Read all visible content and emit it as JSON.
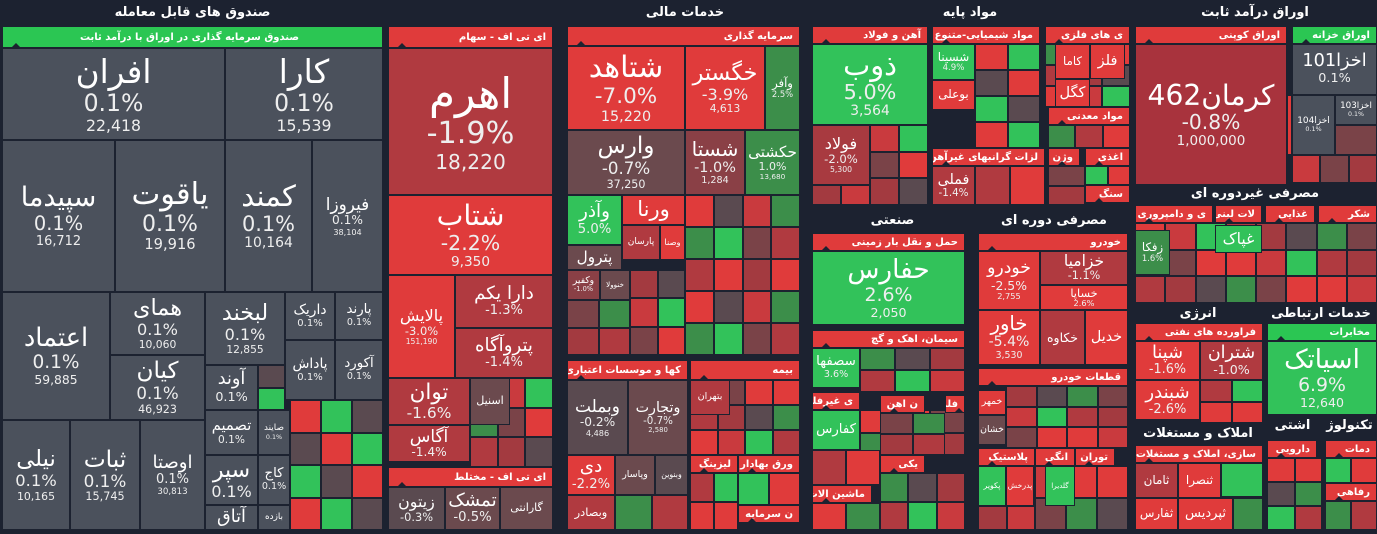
{
  "sectors": [
    {
      "title": "صندوق های قابل معامله"
    },
    {
      "title": "خدمات مالی"
    },
    {
      "title": "مواد پایه"
    },
    {
      "title": "اوراق درآمد ثابت"
    },
    {
      "title": "صنعتی"
    },
    {
      "title": "مصرفی دوره ای"
    },
    {
      "title": "مصرفی غیردوره ای"
    },
    {
      "title": "انرژی"
    },
    {
      "title": "خدمات ارتباطی"
    },
    {
      "title": "املاک و مستغلات"
    },
    {
      "title": "اشتی"
    },
    {
      "title": "تکنولوژ"
    }
  ],
  "groups": [
    {
      "title": "صندوق سرمایه گذاری در اوراق با درآمد ثابت",
      "color": "#2bc653"
    },
    {
      "title": "ای تی اف - سهام",
      "color": "#e03b3b"
    },
    {
      "title": "ای تی اف - مختلط",
      "color": "#e03b3b"
    },
    {
      "title": "سرمایه گذاری",
      "color": "#e03b3b"
    },
    {
      "title": "کها و موسسات اعتباری",
      "color": "#e03b3b"
    },
    {
      "title": "بیمه",
      "color": "#e03b3b"
    },
    {
      "title": "لیزینگ",
      "color": "#e03b3b"
    },
    {
      "title": "ورق بهادار",
      "color": "#e03b3b"
    },
    {
      "title": "ن سرمایه",
      "color": "#e03b3b"
    },
    {
      "title": "آهن و فولاد",
      "color": "#e03b3b"
    },
    {
      "title": "مواد شیمیایی-متنوع",
      "color": "#e03b3b"
    },
    {
      "title": "ی های فلزی",
      "color": "#e03b3b"
    },
    {
      "title": "مواد معدنی",
      "color": "#e03b3b"
    },
    {
      "title": "لزات گرانبهای غیرآهن",
      "color": "#e03b3b"
    },
    {
      "title": "وژن",
      "color": "#e03b3b"
    },
    {
      "title": "اغذی",
      "color": "#e03b3b"
    },
    {
      "title": "سنگ",
      "color": "#e03b3b"
    },
    {
      "title": "حمل و نقل بار زمینی",
      "color": "#e03b3b"
    },
    {
      "title": "سیمان، اهک و گچ",
      "color": "#e03b3b"
    },
    {
      "title": "ی غیرفلزی",
      "color": "#e03b3b"
    },
    {
      "title": "ن اهن",
      "color": "#e03b3b"
    },
    {
      "title": "فلزی",
      "color": "#e03b3b"
    },
    {
      "title": "یکی",
      "color": "#e03b3b"
    },
    {
      "title": "ماشین الات",
      "color": "#e03b3b"
    },
    {
      "title": "خودرو",
      "color": "#e03b3b"
    },
    {
      "title": "قطعات خودرو",
      "color": "#e03b3b"
    },
    {
      "title": "پلاستیک",
      "color": "#e03b3b"
    },
    {
      "title": "انگی",
      "color": "#e03b3b"
    },
    {
      "title": "توران",
      "color": "#e03b3b"
    },
    {
      "title": "اوراق کوپنی",
      "color": "#e03b3b"
    },
    {
      "title": "اوراق خزانه",
      "color": "#2bc653"
    },
    {
      "title": "ی و دامپروری",
      "color": "#e03b3b"
    },
    {
      "title": "لات لبنی",
      "color": "#e03b3b"
    },
    {
      "title": "غذایی",
      "color": "#e03b3b"
    },
    {
      "title": "شکر",
      "color": "#e03b3b"
    },
    {
      "title": "فراورده های نفتی",
      "color": "#e03b3b"
    },
    {
      "title": "مخابرات",
      "color": "#2bc653"
    },
    {
      "title": "سازی، املاک و مستغلات",
      "color": "#e03b3b"
    },
    {
      "title": "دمات",
      "color": "#e03b3b"
    },
    {
      "title": "دارویی",
      "color": "#e03b3b"
    },
    {
      "title": "رفاهی",
      "color": "#e03b3b"
    }
  ],
  "tiles": [
    {
      "name": "افران",
      "change": "0.1%",
      "volume": "22,418",
      "color": "#4b515c"
    },
    {
      "name": "کارا",
      "change": "0.1%",
      "volume": "15,539",
      "color": "#4b515c"
    },
    {
      "name": "سپیدما",
      "change": "0.1%",
      "volume": "16,712",
      "color": "#4b515c"
    },
    {
      "name": "یاقوت",
      "change": "0.1%",
      "volume": "19,916",
      "color": "#4b515c"
    },
    {
      "name": "کمند",
      "change": "0.1%",
      "volume": "10,164",
      "color": "#4b515c"
    },
    {
      "name": "فیروزا",
      "change": "0.1%",
      "volume": "38,104",
      "color": "#4b515c"
    },
    {
      "name": "اعتماد",
      "change": "0.1%",
      "volume": "59,885",
      "color": "#4b515c"
    },
    {
      "name": "همای",
      "change": "0.1%",
      "volume": "10,060",
      "color": "#4b515c"
    },
    {
      "name": "کیان",
      "change": "0.1%",
      "volume": "46,923",
      "color": "#4b515c"
    },
    {
      "name": "لبخند",
      "change": "0.1%",
      "volume": "12,855",
      "color": "#4b515c"
    },
    {
      "name": "داریک",
      "change": "0.1%",
      "color": "#4b515c"
    },
    {
      "name": "پارند",
      "change": "0.1%",
      "color": "#4b515c"
    },
    {
      "name": "آوند",
      "change": "0.1%",
      "color": "#4b515c"
    },
    {
      "name": "پاداش",
      "change": "0.1%",
      "color": "#4b515c"
    },
    {
      "name": "آکورد",
      "change": "0.1%",
      "color": "#4b515c"
    },
    {
      "name": "تصمیم",
      "change": "0.1%",
      "color": "#4b515c"
    },
    {
      "name": "صایند",
      "change": "0.1%",
      "color": "#4b515c"
    },
    {
      "name": "نیلی",
      "change": "0.1%",
      "volume": "10,165",
      "color": "#4b515c"
    },
    {
      "name": "ثبات",
      "change": "0.1%",
      "volume": "15,745",
      "color": "#4b515c"
    },
    {
      "name": "اوصتا",
      "change": "0.1%",
      "volume": "30,813",
      "color": "#4b515c"
    },
    {
      "name": "سپر",
      "change": "0.1%",
      "color": "#4b515c"
    },
    {
      "name": "کاج",
      "change": "0.1%",
      "color": "#4b515c"
    },
    {
      "name": "آتاق",
      "color": "#4b515c"
    },
    {
      "name": "بازده",
      "color": "#4b515c"
    },
    {
      "name": "اهرم",
      "change": "-1.9%",
      "volume": "18,220",
      "color": "#b03a40"
    },
    {
      "name": "شتاب",
      "change": "-2.2%",
      "volume": "9,350",
      "color": "#e03b3b"
    },
    {
      "name": "پالایش",
      "change": "-3.0%",
      "volume": "151,190",
      "color": "#e03b3b"
    },
    {
      "name": "دارا یکم",
      "change": "-1.3%",
      "color": "#b03a40"
    },
    {
      "name": "پتروآگاه",
      "change": "-1.4%",
      "color": "#b03a40"
    },
    {
      "name": "توان",
      "change": "-1.6%",
      "color": "#b03a40"
    },
    {
      "name": "آگاس",
      "change": "-1.4%",
      "color": "#b03a40"
    },
    {
      "name": "اسنیل",
      "color": "#6b4a4e"
    },
    {
      "name": "زیتون",
      "change": "-0.3%",
      "color": "#5a4a50"
    },
    {
      "name": "تمشک",
      "change": "-0.5%",
      "color": "#6b4a4e"
    },
    {
      "name": "گارانتی",
      "color": "#6b4a4e"
    },
    {
      "name": "شتاهد",
      "change": "-7.0%",
      "volume": "15,220",
      "color": "#e03b3b"
    },
    {
      "name": "خگستر",
      "change": "-3.9%",
      "volume": "4,613",
      "color": "#e03b3b"
    },
    {
      "name": "وآفر",
      "change": "2.5%",
      "color": "#3c8e4a"
    },
    {
      "name": "وارس",
      "change": "-0.7%",
      "volume": "37,250",
      "color": "#6b4a4e"
    },
    {
      "name": "شستا",
      "change": "-1.0%",
      "volume": "1,284",
      "color": "#8a4046"
    },
    {
      "name": "حکشتی",
      "change": "1.0%",
      "volume": "13,680",
      "color": "#3c8e4a"
    },
    {
      "name": "وآذر",
      "change": "5.0%",
      "color": "#32c25a"
    },
    {
      "name": "ورنا",
      "color": "#e03b3b"
    },
    {
      "name": "پارسان",
      "color": "#b03a40"
    },
    {
      "name": "وصنا",
      "color": "#e03b3b"
    },
    {
      "name": "پترول",
      "color": "#6b4a4e"
    },
    {
      "name": "وکفیر",
      "change": "-1.0%",
      "color": "#8a4046"
    },
    {
      "name": "خنوولا",
      "color": "#6b4a4e"
    },
    {
      "name": "وبملت",
      "change": "-0.2%",
      "volume": "4,486",
      "color": "#5a4a50"
    },
    {
      "name": "وتجارت",
      "change": "-0.7%",
      "volume": "2,580",
      "color": "#6b4a4e"
    },
    {
      "name": "دی",
      "change": "-2.2%",
      "color": "#e03b3b"
    },
    {
      "name": "وپاسار",
      "color": "#6b4a4e"
    },
    {
      "name": "وبنوین",
      "color": "#5a4a50"
    },
    {
      "name": "وبصادر",
      "color": "#b03a40"
    },
    {
      "name": "بتهران",
      "color": "#b03a40"
    },
    {
      "name": "ذوب",
      "change": "5.0%",
      "volume": "3,564",
      "color": "#32c25a"
    },
    {
      "name": "فولاد",
      "change": "-2.0%",
      "volume": "5,300",
      "color": "#a83a40"
    },
    {
      "name": "شسینا",
      "change": "4.9%",
      "color": "#32c25a"
    },
    {
      "name": "بوعلی",
      "color": "#e03b3b"
    },
    {
      "name": "کاما",
      "color": "#e03b3b"
    },
    {
      "name": "فلز",
      "color": "#e03b3b"
    },
    {
      "name": "کگل",
      "color": "#e03b3b"
    },
    {
      "name": "فملی",
      "change": "-1.4%",
      "color": "#b03a40"
    },
    {
      "name": "حفارس",
      "change": "2.6%",
      "volume": "2,050",
      "color": "#32c25a"
    },
    {
      "name": "سصفها",
      "change": "3.6%",
      "color": "#32c25a"
    },
    {
      "name": "کفارس",
      "color": "#32c25a"
    },
    {
      "name": "خودرو",
      "change": "-2.5%",
      "volume": "2,755",
      "color": "#e03b3b"
    },
    {
      "name": "خزامیا",
      "change": "-1.1%",
      "color": "#b03a40"
    },
    {
      "name": "خساپا",
      "change": "2.6%",
      "color": "#e03b3b"
    },
    {
      "name": "خاور",
      "change": "-5.4%",
      "volume": "3,530",
      "color": "#e03b3b"
    },
    {
      "name": "خکاوه",
      "color": "#b03a40"
    },
    {
      "name": "خدیل",
      "color": "#e03b3b"
    },
    {
      "name": "خمهر",
      "color": "#e03b3b"
    },
    {
      "name": "خشان",
      "color": "#6b4a4e"
    },
    {
      "name": "پکویر",
      "color": "#32c25a"
    },
    {
      "name": "پدرخش",
      "color": "#e03b3b"
    },
    {
      "name": "گلدیرا",
      "color": "#32c25a"
    },
    {
      "name": "کرمان462",
      "change": "-0.8%",
      "volume": "1,000,000",
      "color": "#a8333d"
    },
    {
      "name": "اخزا101",
      "change": "0.1%",
      "color": "#4b515c"
    },
    {
      "name": "اخزا103",
      "change": "0.1%",
      "color": "#4b515c"
    },
    {
      "name": "اخزا104",
      "change": "0.1%",
      "color": "#4b515c"
    },
    {
      "name": "زفکا",
      "change": "1.6%",
      "color": "#3c8e4a"
    },
    {
      "name": "غپاک",
      "color": "#32c25a"
    },
    {
      "name": "شپنا",
      "change": "-1.6%",
      "color": "#e03b3b"
    },
    {
      "name": "شتران",
      "change": "-1.0%",
      "color": "#b03a40"
    },
    {
      "name": "شبندر",
      "change": "-2.6%",
      "color": "#e03b3b"
    },
    {
      "name": "اسیاتک",
      "change": "6.9%",
      "volume": "12,640",
      "color": "#32c25a"
    },
    {
      "name": "ثامان",
      "color": "#b03a40"
    },
    {
      "name": "ثنصرا",
      "color": "#e03b3b"
    },
    {
      "name": "ثفارس",
      "color": "#e03b3b"
    },
    {
      "name": "ثپردیس",
      "color": "#e03b3b"
    }
  ]
}
